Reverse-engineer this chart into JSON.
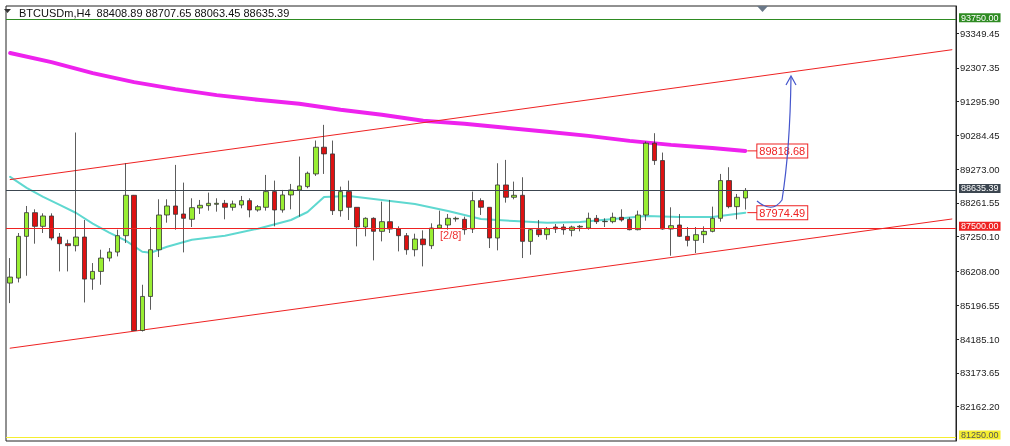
{
  "chart_data": {
    "type": "candlestick",
    "title": "BTCUSDm,H4  88408.89 88707.65 88063.45 88635.39",
    "categories": [
      null,
      null,
      null,
      null,
      null,
      null,
      null,
      null,
      null,
      null,
      null,
      null,
      null,
      null,
      null,
      null,
      null,
      null,
      null,
      null,
      null,
      null,
      null,
      null,
      null,
      null,
      null,
      null,
      null,
      null,
      null,
      null,
      null,
      null,
      null,
      null,
      null,
      null,
      null,
      null,
      null,
      null,
      null,
      null,
      null,
      null,
      null,
      null,
      null,
      null,
      null,
      null,
      null,
      null,
      null,
      null,
      null,
      null,
      null,
      null,
      null,
      null,
      null,
      null,
      null,
      null,
      null,
      null,
      null,
      null,
      null,
      null,
      null,
      null,
      null,
      null,
      null,
      null,
      null,
      null,
      null,
      null,
      null,
      null,
      null,
      null,
      null,
      null,
      null,
      null,
      null,
      null,
      null,
      null,
      null,
      null,
      null,
      null,
      null,
      null,
      null,
      null,
      null,
      null,
      null,
      null,
      null,
      null,
      null,
      null,
      null,
      null,
      null,
      null,
      null
    ],
    "ohlc": [
      [
        85860,
        86610,
        85260,
        86040
      ],
      [
        86010,
        87360,
        85880,
        87260
      ],
      [
        87260,
        88170,
        86080,
        87970
      ],
      [
        87970,
        88070,
        87040,
        87560
      ],
      [
        87560,
        87950,
        87360,
        87870
      ],
      [
        87870,
        87950,
        87140,
        87210
      ],
      [
        87240,
        87360,
        86210,
        87040
      ],
      [
        87040,
        87160,
        86210,
        86980
      ],
      [
        86980,
        90370,
        86810,
        87240
      ],
      [
        87240,
        87750,
        85280,
        85980
      ],
      [
        85980,
        86460,
        85660,
        86210
      ],
      [
        86210,
        86860,
        85810,
        86610
      ],
      [
        86610,
        86910,
        86510,
        86790
      ],
      [
        86790,
        87460,
        86660,
        87280
      ],
      [
        87280,
        89450,
        87060,
        88490
      ],
      [
        88490,
        88500,
        84440,
        84440
      ],
      [
        84440,
        85810,
        84410,
        85460
      ],
      [
        85460,
        87540,
        85060,
        86860
      ],
      [
        86860,
        88370,
        86640,
        87900
      ],
      [
        87900,
        88370,
        87670,
        88170
      ],
      [
        88170,
        89400,
        87460,
        87920
      ],
      [
        87930,
        88870,
        86780,
        87800
      ],
      [
        87770,
        88400,
        87540,
        88120
      ],
      [
        88110,
        88350,
        87930,
        88190
      ],
      [
        88180,
        88570,
        88030,
        88250
      ],
      [
        88220,
        88400,
        88000,
        88250
      ],
      [
        88250,
        88350,
        87770,
        88130
      ],
      [
        88130,
        88330,
        88030,
        88230
      ],
      [
        88200,
        88470,
        88100,
        88330
      ],
      [
        88330,
        88400,
        87830,
        88050
      ],
      [
        88050,
        88200,
        88000,
        88150
      ],
      [
        88130,
        89100,
        88030,
        88600
      ],
      [
        88600,
        88930,
        87560,
        88050
      ],
      [
        88050,
        88650,
        87970,
        88500
      ],
      [
        88500,
        88830,
        88070,
        88650
      ],
      [
        88650,
        89650,
        87850,
        88770
      ],
      [
        88750,
        89200,
        88700,
        89150
      ],
      [
        89130,
        90130,
        89070,
        89930
      ],
      [
        89930,
        90600,
        89130,
        89730
      ],
      [
        89730,
        90130,
        87900,
        88030
      ],
      [
        88030,
        88750,
        87850,
        88600
      ],
      [
        88600,
        88930,
        87750,
        88130
      ],
      [
        88130,
        88130,
        86960,
        87540
      ],
      [
        87540,
        87830,
        87260,
        87800
      ],
      [
        87800,
        87830,
        86540,
        87410
      ],
      [
        87410,
        88300,
        87110,
        87700
      ],
      [
        87700,
        88350,
        87360,
        87480
      ],
      [
        87480,
        87560,
        86810,
        87280
      ],
      [
        87280,
        87360,
        86710,
        86860
      ],
      [
        86860,
        87340,
        86660,
        87180
      ],
      [
        87180,
        87440,
        86360,
        87010
      ],
      [
        86980,
        87650,
        86880,
        87510
      ],
      [
        87510,
        88030,
        87480,
        87600
      ],
      [
        87600,
        87930,
        87460,
        87800
      ],
      [
        87780,
        87850,
        87700,
        87800
      ],
      [
        87770,
        87850,
        87310,
        87460
      ],
      [
        87480,
        88600,
        87360,
        88330
      ],
      [
        88330,
        88400,
        87900,
        88130
      ],
      [
        88130,
        88130,
        86910,
        87210
      ],
      [
        87210,
        89450,
        86840,
        88800
      ],
      [
        88800,
        89550,
        88270,
        88430
      ],
      [
        88430,
        88900,
        88370,
        88490
      ],
      [
        88490,
        89030,
        86610,
        87110
      ],
      [
        87110,
        87480,
        86710,
        87460
      ],
      [
        87460,
        87750,
        87240,
        87310
      ],
      [
        87310,
        87540,
        87160,
        87480
      ],
      [
        87540,
        87630,
        87360,
        87480
      ],
      [
        87540,
        87630,
        87310,
        87460
      ],
      [
        87440,
        87580,
        87260,
        87540
      ],
      [
        87540,
        87600,
        87410,
        87560
      ],
      [
        87510,
        87970,
        87460,
        87800
      ],
      [
        87800,
        87900,
        87630,
        87700
      ],
      [
        87700,
        87800,
        87540,
        87710
      ],
      [
        87700,
        87970,
        87650,
        87830
      ],
      [
        87830,
        88070,
        87700,
        87750
      ],
      [
        87770,
        87830,
        87440,
        87460
      ],
      [
        87460,
        88030,
        87440,
        87900
      ],
      [
        87900,
        90100,
        87730,
        90050
      ],
      [
        90050,
        90350,
        89400,
        89530
      ],
      [
        89530,
        89770,
        87460,
        87480
      ],
      [
        87480,
        88130,
        86680,
        87580
      ],
      [
        87600,
        87930,
        87240,
        87260
      ],
      [
        87260,
        87540,
        86960,
        87140
      ],
      [
        87140,
        87540,
        86760,
        87310
      ],
      [
        87310,
        87560,
        87060,
        87410
      ],
      [
        87410,
        88150,
        87380,
        87800
      ],
      [
        87800,
        89130,
        87700,
        88930
      ],
      [
        88930,
        89330,
        88100,
        88150
      ],
      [
        88150,
        88530,
        87770,
        88430
      ],
      [
        88408.89,
        88707.65,
        88063.45,
        88635.39
      ],
      null,
      null,
      null,
      null,
      null,
      null,
      null,
      null,
      null,
      null,
      null,
      null,
      null,
      null,
      null,
      null,
      null,
      null,
      null,
      null,
      null,
      null,
      null,
      null,
      null
    ],
    "series": [
      {
        "type": "line",
        "color": "#ee22ee",
        "values": [
          92750,
          null,
          null,
          null,
          null,
          92480,
          null,
          null,
          null,
          null,
          92150,
          null,
          null,
          null,
          null,
          91880,
          null,
          null,
          null,
          null,
          91670,
          null,
          null,
          null,
          null,
          91490,
          null,
          null,
          null,
          null,
          91350,
          null,
          null,
          null,
          null,
          91230,
          null,
          null,
          null,
          null,
          91050,
          null,
          null,
          null,
          null,
          90900,
          null,
          null,
          null,
          null,
          90720,
          null,
          null,
          null,
          null,
          90630,
          null,
          null,
          null,
          null,
          90510,
          null,
          null,
          null,
          null,
          90390,
          null,
          null,
          null,
          null,
          90270,
          null,
          null,
          null,
          null,
          90120,
          null,
          null,
          null,
          null,
          90000,
          null,
          null,
          null,
          null,
          89910,
          null,
          null,
          null,
          89820,
          null,
          null,
          null,
          null,
          null,
          null,
          null,
          null,
          null,
          null,
          null,
          null,
          null,
          null,
          null,
          null,
          null,
          null,
          null,
          null,
          null,
          null,
          null,
          null,
          null
        ]
      },
      {
        "type": "line",
        "color": "#5fd8d0",
        "values": [
          89040,
          null,
          88710,
          null,
          88440,
          null,
          88200,
          null,
          87960,
          null,
          87640,
          null,
          87370,
          null,
          87130,
          null,
          86800,
          86770,
          null,
          86950,
          null,
          null,
          87160,
          null,
          null,
          null,
          87280,
          null,
          null,
          null,
          87490,
          null,
          null,
          null,
          87750,
          null,
          87990,
          null,
          88440,
          null,
          null,
          88470,
          null,
          null,
          null,
          88350,
          null,
          null,
          null,
          88230,
          null,
          null,
          null,
          88020,
          null,
          null,
          null,
          87780,
          null,
          null,
          null,
          87720,
          null,
          null,
          null,
          87670,
          null,
          null,
          null,
          87690,
          null,
          null,
          null,
          87780,
          null,
          null,
          null,
          87870,
          null,
          null,
          null,
          87840,
          null,
          null,
          null,
          87840,
          null,
          null,
          null,
          87970,
          null,
          null,
          null,
          null,
          null,
          null,
          null,
          null,
          null,
          null,
          null,
          null,
          null,
          null,
          null,
          null,
          null,
          null,
          null,
          null,
          null,
          null,
          null,
          null,
          null
        ]
      },
      {
        "type": "line",
        "color": "#ee2222",
        "values": [
          88960,
          null,
          null,
          null,
          null,
          null,
          null,
          null,
          null,
          null,
          null,
          null,
          null,
          null,
          null,
          null,
          null,
          null,
          null,
          null,
          null,
          null,
          null,
          null,
          null,
          null,
          null,
          null,
          null,
          null,
          null,
          null,
          null,
          null,
          null,
          null,
          null,
          null,
          null,
          null,
          null,
          null,
          null,
          null,
          null,
          null,
          null,
          null,
          null,
          null,
          null,
          null,
          null,
          null,
          null,
          null,
          null,
          null,
          null,
          null,
          null,
          null,
          null,
          null,
          null,
          null,
          null,
          null,
          null,
          null,
          null,
          null,
          null,
          null,
          null,
          null,
          null,
          null,
          null,
          null,
          null,
          null,
          null,
          null,
          null,
          null,
          null,
          null,
          null,
          null,
          null,
          null,
          null,
          null,
          null,
          null,
          null,
          null,
          null,
          null,
          null,
          null,
          null,
          null,
          null,
          null,
          null,
          null,
          null,
          null,
          null,
          null,
          null,
          null,
          92850
        ]
      },
      {
        "type": "line",
        "color": "#ee2222",
        "values": [
          83910,
          null,
          null,
          null,
          null,
          null,
          null,
          null,
          null,
          null,
          null,
          null,
          null,
          null,
          null,
          null,
          null,
          null,
          null,
          null,
          null,
          null,
          null,
          null,
          null,
          null,
          null,
          null,
          null,
          null,
          null,
          null,
          null,
          null,
          null,
          null,
          null,
          null,
          null,
          null,
          null,
          null,
          null,
          null,
          null,
          null,
          null,
          null,
          null,
          null,
          null,
          null,
          null,
          null,
          null,
          null,
          null,
          null,
          null,
          null,
          null,
          null,
          null,
          null,
          null,
          null,
          null,
          null,
          null,
          null,
          null,
          null,
          null,
          null,
          null,
          null,
          null,
          null,
          null,
          null,
          null,
          null,
          null,
          null,
          null,
          null,
          null,
          null,
          null,
          null,
          null,
          null,
          null,
          null,
          null,
          null,
          null,
          null,
          null,
          null,
          null,
          null,
          null,
          null,
          null,
          null,
          null,
          null,
          null,
          null,
          null,
          null,
          null,
          null,
          87780
        ]
      }
    ],
    "ylim": [
      81130,
      94160
    ],
    "yticks": [
      {
        "value": 93349.45,
        "label": "93349.45"
      },
      {
        "value": 92307.35,
        "label": "92307.35"
      },
      {
        "value": 91295.9,
        "label": "91295.90"
      },
      {
        "value": 90284.45,
        "label": "90284.45"
      },
      {
        "value": 89273,
        "label": "89273.00"
      },
      {
        "value": 88261.55,
        "label": "88261.55"
      },
      {
        "value": 87250.1,
        "label": "87250.10"
      },
      {
        "value": 86208,
        "label": "86208.00"
      },
      {
        "value": 85196.55,
        "label": "85196.55"
      },
      {
        "value": 84185.1,
        "label": "84185.10"
      },
      {
        "value": 83173.65,
        "label": "83173.65"
      },
      {
        "value": 82162.2,
        "label": "82162.20"
      }
    ],
    "ref_lines": [
      {
        "axis": "y",
        "value": 93750,
        "label": "93750.00",
        "color": "#2e8b22"
      },
      {
        "axis": "y",
        "value": 88635.39,
        "label": "88635.39",
        "color": "#3c4650"
      },
      {
        "axis": "y",
        "value": 87500,
        "label": "87500.00",
        "color": "#ee2222"
      },
      {
        "axis": "y",
        "value": 81250,
        "label": "81250.00",
        "color": "#f5ee30"
      }
    ],
    "annotations": [
      "89818.68",
      "87974.49",
      "[2/8]"
    ],
    "grid": false,
    "tick_labels": "y",
    "marker": "none",
    "line_style": "solid"
  }
}
